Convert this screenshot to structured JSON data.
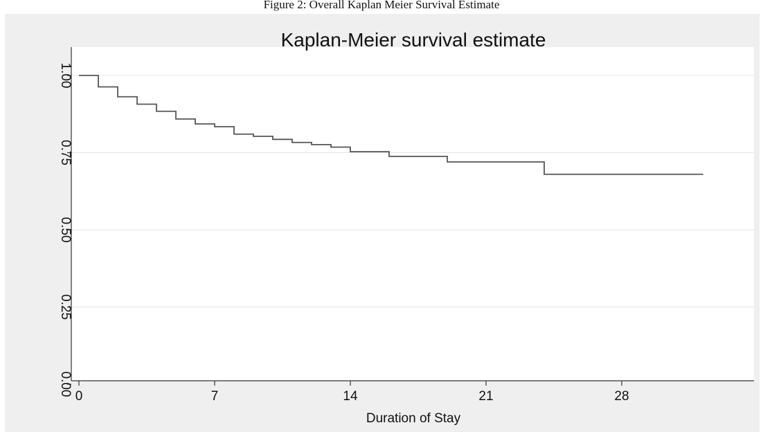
{
  "caption": "Figure 2: Overall Kaplan Meier Survival Estimate",
  "chart_data": {
    "type": "line",
    "step": true,
    "title": "Kaplan-Meier survival estimate",
    "xlabel": "Duration of Stay",
    "ylabel": "",
    "xlim": [
      0,
      32.3
    ],
    "ylim": [
      0,
      1
    ],
    "xticks": [
      "0",
      "7",
      "14",
      "21",
      "28"
    ],
    "yticks": [
      "0.00",
      "0.25",
      "0.50",
      "0.75",
      "1.00"
    ],
    "grid": true,
    "series": [
      {
        "x": [
          0,
          1,
          2,
          3,
          4,
          5,
          6,
          7,
          8,
          9,
          10,
          11,
          12,
          13,
          14,
          16,
          19,
          24,
          32.2
        ],
        "y": [
          1.0,
          0.963,
          0.931,
          0.907,
          0.884,
          0.859,
          0.843,
          0.834,
          0.81,
          0.803,
          0.793,
          0.783,
          0.776,
          0.768,
          0.753,
          0.738,
          0.72,
          0.68,
          0.68
        ],
        "color": "#555555"
      }
    ]
  }
}
